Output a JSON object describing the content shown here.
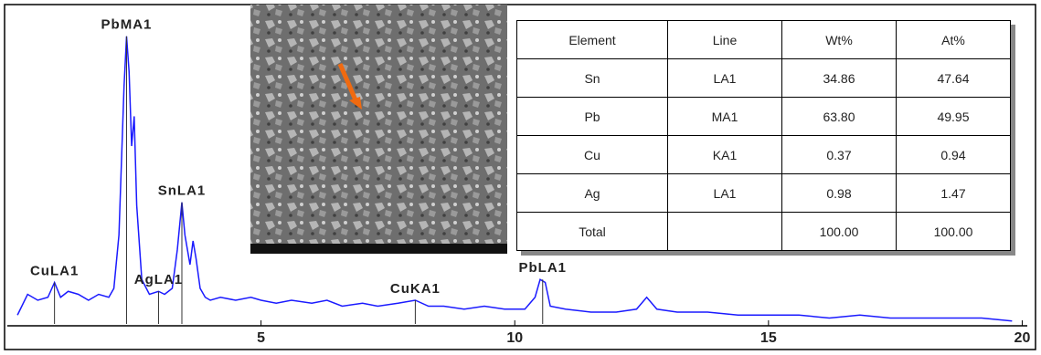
{
  "chart_data": {
    "type": "line",
    "x": [
      0.2,
      0.4,
      0.6,
      0.8,
      0.93,
      1.05,
      1.2,
      1.4,
      1.6,
      1.8,
      2.0,
      2.1,
      2.2,
      2.3,
      2.35,
      2.4,
      2.45,
      2.5,
      2.55,
      2.65,
      2.8,
      2.98,
      3.1,
      3.25,
      3.35,
      3.44,
      3.5,
      3.6,
      3.66,
      3.72,
      3.8,
      3.9,
      4.0,
      4.2,
      4.5,
      4.8,
      5.0,
      5.3,
      5.6,
      6.0,
      6.3,
      6.6,
      7.0,
      7.3,
      7.7,
      8.04,
      8.3,
      8.6,
      9.0,
      9.4,
      9.8,
      10.2,
      10.4,
      10.5,
      10.6,
      10.7,
      11.0,
      11.5,
      12.0,
      12.4,
      12.6,
      12.8,
      13.2,
      13.8,
      14.4,
      15.0,
      15.6,
      16.2,
      16.8,
      17.4,
      18.0,
      18.6,
      19.2,
      19.8
    ],
    "series": [
      {
        "color": "#1a1aff",
        "values": [
          3,
          10,
          8,
          9,
          14,
          9,
          11,
          10,
          8,
          10,
          9,
          12,
          30,
          80,
          97,
          85,
          60,
          70,
          40,
          15,
          10,
          11,
          10,
          12,
          25,
          41,
          30,
          20,
          28,
          22,
          12,
          9,
          8,
          9,
          8,
          9,
          8,
          7,
          8,
          7,
          8,
          6,
          7,
          6,
          7,
          8,
          6,
          6,
          5,
          6,
          5,
          5,
          9,
          15,
          14,
          6,
          5,
          4,
          4,
          5,
          9,
          5,
          4,
          4,
          3,
          3,
          3,
          2,
          3,
          2,
          2,
          2,
          2,
          1
        ]
      }
    ],
    "peaks": [
      {
        "label": "PbMA1",
        "x": 2.35,
        "y": 97
      },
      {
        "label": "SnLA1",
        "x": 3.44,
        "y": 41
      },
      {
        "label": "PbLA1",
        "x": 10.55,
        "y": 15
      },
      {
        "label": "CuLA1",
        "x": 0.93,
        "y": 14
      },
      {
        "label": "AgLA1",
        "x": 2.98,
        "y": 11
      },
      {
        "label": "CuKA1",
        "x": 8.04,
        "y": 8
      }
    ],
    "xlim": [
      0,
      20.1
    ],
    "ylim": [
      0,
      100
    ],
    "xticks": [
      5,
      10,
      15,
      20
    ]
  },
  "table": {
    "header": [
      "Element",
      "Line",
      "Wt%",
      "At%"
    ],
    "rows": [
      [
        "Sn",
        "LA1",
        "34.86",
        "47.64"
      ],
      [
        "Pb",
        "MA1",
        "63.80",
        "49.95"
      ],
      [
        "Cu",
        "KA1",
        "0.37",
        "0.94"
      ],
      [
        "Ag",
        "LA1",
        "0.98",
        "1.47"
      ],
      [
        "Total",
        null,
        "100.00",
        "100.00"
      ]
    ]
  }
}
